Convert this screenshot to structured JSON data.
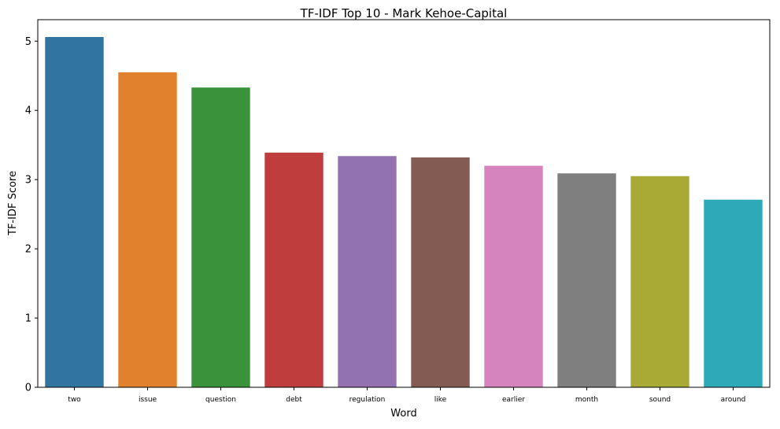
{
  "chart_data": {
    "type": "bar",
    "title": "TF-IDF Top 10 - Mark Kehoe-Capital",
    "xlabel": "Word",
    "ylabel": "TF-IDF Score",
    "categories": [
      "two",
      "issue",
      "question",
      "debt",
      "regulation",
      "like",
      "earlier",
      "month",
      "sound",
      "around"
    ],
    "values": [
      5.06,
      4.55,
      4.33,
      3.39,
      3.34,
      3.32,
      3.2,
      3.09,
      3.05,
      2.71
    ],
    "colors": [
      "#3274a1",
      "#e1812c",
      "#3a923a",
      "#c03d3e",
      "#9372b2",
      "#845b53",
      "#d684bd",
      "#7f7f7f",
      "#a9aa35",
      "#2ea9b8"
    ],
    "ylim": [
      0,
      5.31
    ],
    "yticks": [
      0,
      1,
      2,
      3,
      4,
      5
    ],
    "grid": false,
    "legend": "none"
  }
}
